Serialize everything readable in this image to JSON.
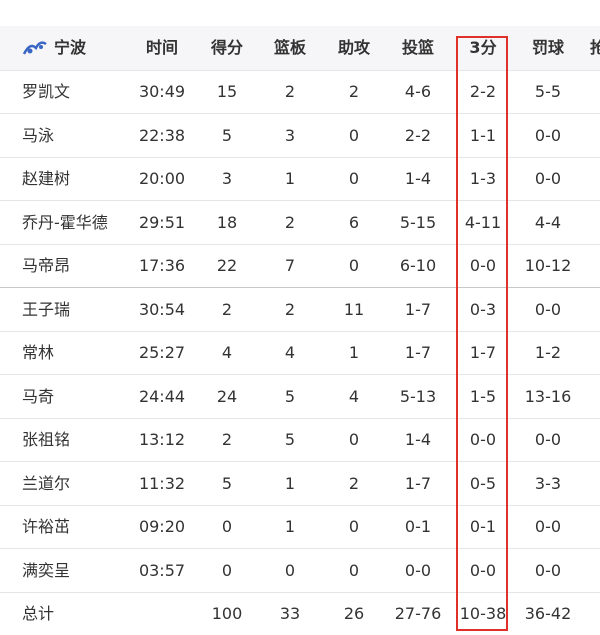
{
  "table": {
    "team": "宁波",
    "columns": [
      "时间",
      "得分",
      "篮板",
      "助攻",
      "投篮",
      "3分",
      "罚球",
      "抢断"
    ],
    "rows": [
      [
        "罗凯文",
        "30:49",
        "15",
        "2",
        "2",
        "4-6",
        "2-2",
        "5-5"
      ],
      [
        "马泳",
        "22:38",
        "5",
        "3",
        "0",
        "2-2",
        "1-1",
        "0-0"
      ],
      [
        "赵建树",
        "20:00",
        "3",
        "1",
        "0",
        "1-4",
        "1-3",
        "0-0"
      ],
      [
        "乔丹-霍华德",
        "29:51",
        "18",
        "2",
        "6",
        "5-15",
        "4-11",
        "4-4"
      ],
      [
        "马帝昂",
        "17:36",
        "22",
        "7",
        "0",
        "6-10",
        "0-0",
        "10-12"
      ],
      [
        "王子瑞",
        "30:54",
        "2",
        "2",
        "11",
        "1-7",
        "0-3",
        "0-0"
      ],
      [
        "常林",
        "25:27",
        "4",
        "4",
        "1",
        "1-7",
        "1-7",
        "1-2"
      ],
      [
        "马奇",
        "24:44",
        "24",
        "5",
        "4",
        "5-13",
        "1-5",
        "13-16"
      ],
      [
        "张祖铭",
        "13:12",
        "2",
        "5",
        "0",
        "1-4",
        "0-0",
        "0-0"
      ],
      [
        "兰道尔",
        "11:32",
        "5",
        "1",
        "2",
        "1-7",
        "0-5",
        "3-3"
      ],
      [
        "许裕茁",
        "09:20",
        "0",
        "1",
        "0",
        "0-1",
        "0-1",
        "0-0"
      ],
      [
        "满奕呈",
        "03:57",
        "0",
        "0",
        "0",
        "0-0",
        "0-0",
        "0-0"
      ]
    ],
    "total": [
      "总计",
      "",
      "100",
      "33",
      "26",
      "27-76",
      "10-38",
      "36-42"
    ]
  }
}
